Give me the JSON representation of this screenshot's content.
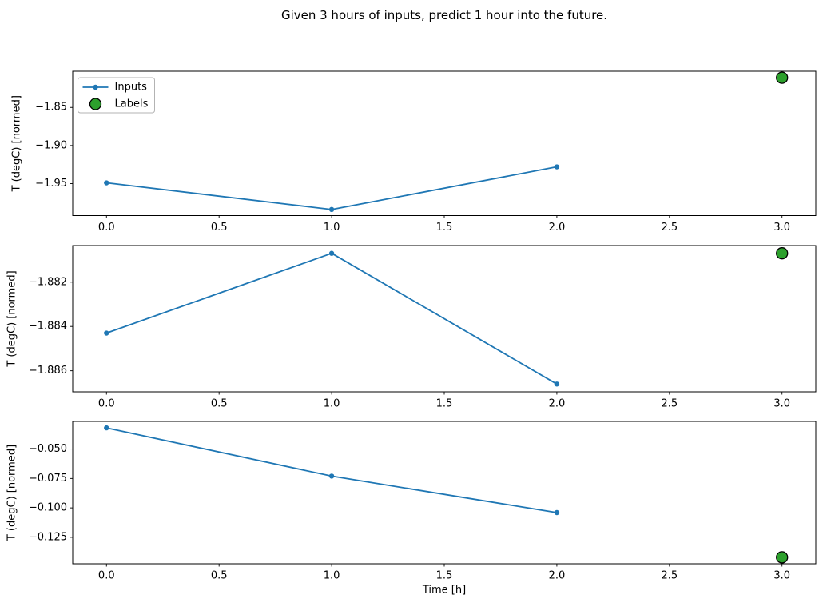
{
  "figure": {
    "title": "Given 3 hours of inputs, predict 1 hour into the future."
  },
  "colors": {
    "inputs_line": "#1f77b4",
    "labels_marker_fill": "#2ca02c",
    "labels_marker_edge": "#000000",
    "spine": "#000000",
    "tick_text": "#000000",
    "legend_border": "#b3b3b3",
    "legend_bg": "#ffffff",
    "background": "#ffffff"
  },
  "legend": {
    "items": [
      {
        "label": "Inputs",
        "marker": "line-with-dot-icon"
      },
      {
        "label": "Labels",
        "marker": "green-circle-icon"
      }
    ]
  },
  "chart_data": [
    {
      "type": "line",
      "title": "",
      "xlabel": "",
      "ylabel": "T (degC) [normed]",
      "xlim": [
        -0.15,
        3.15
      ],
      "ylim": [
        -1.992,
        -1.8025
      ],
      "xticks": [
        0,
        0.5,
        1,
        1.5,
        2,
        2.5,
        3
      ],
      "xtick_labels": [
        "0.0",
        "0.5",
        "1.0",
        "1.5",
        "2.0",
        "2.5",
        "3.0"
      ],
      "yticks": [
        -1.85,
        -1.9,
        -1.95
      ],
      "ytick_labels": [
        "−1.85",
        "−1.90",
        "−1.95"
      ],
      "series": [
        {
          "name": "Inputs",
          "type": "line",
          "x": [
            0,
            1,
            2
          ],
          "y": [
            -1.949,
            -1.984,
            -1.928
          ]
        },
        {
          "name": "Labels",
          "type": "scatter",
          "x": [
            3
          ],
          "y": [
            -1.811
          ]
        }
      ],
      "legend": true,
      "legend_position": "upper left",
      "grid": false
    },
    {
      "type": "line",
      "title": "",
      "xlabel": "",
      "ylabel": "T (degC) [normed]",
      "xlim": [
        -0.15,
        3.15
      ],
      "ylim": [
        -1.88695,
        -1.88035
      ],
      "xticks": [
        0,
        0.5,
        1,
        1.5,
        2,
        2.5,
        3
      ],
      "xtick_labels": [
        "0.0",
        "0.5",
        "1.0",
        "1.5",
        "2.0",
        "2.5",
        "3.0"
      ],
      "yticks": [
        -1.882,
        -1.884,
        -1.886
      ],
      "ytick_labels": [
        "−1.882",
        "−1.884",
        "−1.886"
      ],
      "series": [
        {
          "name": "Inputs",
          "type": "line",
          "x": [
            0,
            1,
            2
          ],
          "y": [
            -1.8843,
            -1.8807,
            -1.8866
          ]
        },
        {
          "name": "Labels",
          "type": "scatter",
          "x": [
            3
          ],
          "y": [
            -1.8807
          ]
        }
      ],
      "legend": false,
      "grid": false
    },
    {
      "type": "line",
      "title": "",
      "xlabel": "Time [h]",
      "ylabel": "T (degC) [normed]",
      "xlim": [
        -0.15,
        3.15
      ],
      "ylim": [
        -0.1475,
        -0.0265
      ],
      "xticks": [
        0,
        0.5,
        1,
        1.5,
        2,
        2.5,
        3
      ],
      "xtick_labels": [
        "0.0",
        "0.5",
        "1.0",
        "1.5",
        "2.0",
        "2.5",
        "3.0"
      ],
      "yticks": [
        -0.05,
        -0.075,
        -0.1,
        -0.125
      ],
      "ytick_labels": [
        "−0.050",
        "−0.075",
        "−0.100",
        "−0.125"
      ],
      "series": [
        {
          "name": "Inputs",
          "type": "line",
          "x": [
            0,
            1,
            2
          ],
          "y": [
            -0.032,
            -0.073,
            -0.104
          ]
        },
        {
          "name": "Labels",
          "type": "scatter",
          "x": [
            3
          ],
          "y": [
            -0.142
          ]
        }
      ],
      "legend": false,
      "grid": false
    }
  ]
}
